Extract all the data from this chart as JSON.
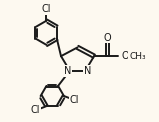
{
  "background_color": "#fdf9f0",
  "line_color": "#1a1a1a",
  "line_width": 1.4,
  "label_color": "#1a1a1a",
  "font_size": 7.0,
  "xlim": [
    0.0,
    5.2
  ],
  "ylim": [
    -1.2,
    5.0
  ]
}
